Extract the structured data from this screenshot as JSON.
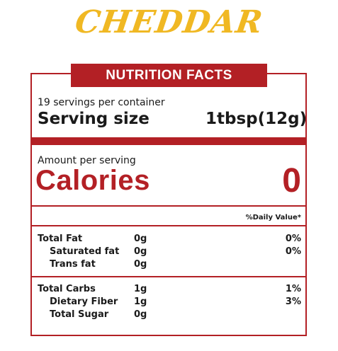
{
  "title": "CHEDDAR",
  "banner": "NUTRITION FACTS",
  "servings_per_container": "19 servings per container",
  "serving_size_label": "Serving size",
  "serving_size_value": "1tbsp(12g)",
  "amount_per_serving": "Amount per serving",
  "calories_label": "Calories",
  "calories_value": "0",
  "daily_value_header": "%Daily Value*",
  "nutrients": {
    "total_fat": {
      "label": "Total Fat",
      "amount": "0g",
      "dv": "0%"
    },
    "saturated_fat": {
      "label": "Saturated fat",
      "amount": "0g",
      "dv": "0%"
    },
    "trans_fat": {
      "label": "Trans fat",
      "amount": "0g"
    },
    "total_carbs": {
      "label": "Total Carbs",
      "amount": "1g",
      "dv": "1%"
    },
    "dietary_fiber": {
      "label": "Dietary Fiber",
      "amount": "1g",
      "dv": "3%"
    },
    "total_sugar": {
      "label": "Total Sugar",
      "amount": "0g"
    }
  },
  "colors": {
    "brand_red": "#b32025",
    "title_yellow": "#f0b823"
  }
}
